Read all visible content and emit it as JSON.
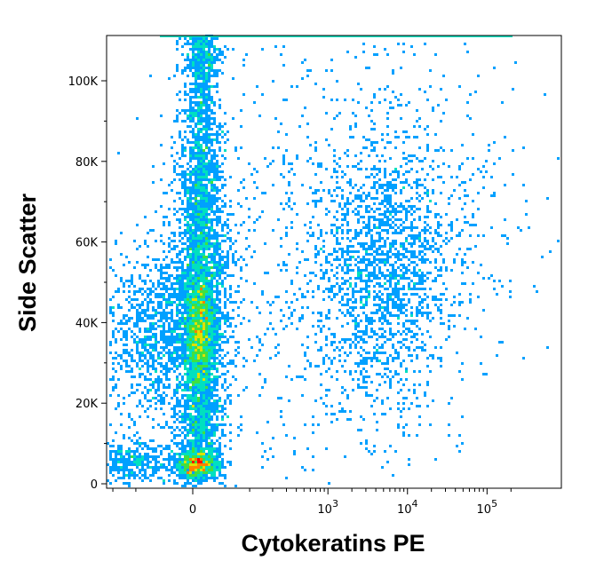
{
  "chart_data": {
    "type": "scatter",
    "style": "flow-cytometry-density-dot-plot",
    "xlabel": "Cytokeratins PE",
    "ylabel": "Side Scatter",
    "x_scale": "biexponential",
    "y_scale": "linear",
    "ylim": [
      0,
      110000
    ],
    "y_ticks": [
      {
        "value": 0,
        "label": "0"
      },
      {
        "value": 20000,
        "label": "20K"
      },
      {
        "value": 40000,
        "label": "40K"
      },
      {
        "value": 60000,
        "label": "60K"
      },
      {
        "value": 80000,
        "label": "80K"
      },
      {
        "value": 100000,
        "label": "100K"
      }
    ],
    "x_ticks": [
      {
        "value": 0,
        "label": "0",
        "base": "0",
        "exp": ""
      },
      {
        "value": 1000,
        "label": "10^3",
        "base": "10",
        "exp": "3"
      },
      {
        "value": 10000,
        "label": "10^4",
        "base": "10",
        "exp": "4"
      },
      {
        "value": 100000,
        "label": "10^5",
        "base": "10",
        "exp": "5"
      }
    ],
    "color_scale": [
      "#0000dd",
      "#00a0ff",
      "#00e0c0",
      "#40e040",
      "#e0e000",
      "#ff8000",
      "#ff0000"
    ],
    "populations": [
      {
        "name": "low-SSC negative cluster",
        "x_center": 50,
        "y_center": 5000,
        "density": "highest"
      },
      {
        "name": "mid-SSC negative cluster",
        "x_center": 50,
        "y_center": 40000,
        "density": "high"
      },
      {
        "name": "Cytokeratin-positive cluster",
        "x_center": 4000,
        "y_center": 55000,
        "density": "low"
      }
    ],
    "grid": false,
    "legend": "none"
  }
}
